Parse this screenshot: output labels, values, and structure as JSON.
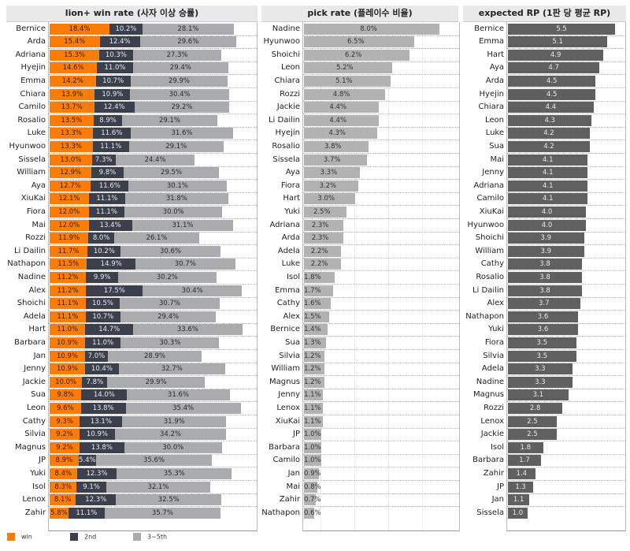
{
  "chart_data": [
    {
      "type": "bar",
      "orientation": "horizontal",
      "stacked": true,
      "title": "lion+ win rate (사자 이상 승률)",
      "categories": [
        "Bernice",
        "Arda",
        "Adriana",
        "Hyejin",
        "Emma",
        "Chiara",
        "Camilo",
        "Rosalio",
        "Luke",
        "Hyunwoo",
        "Sissela",
        "William",
        "Aya",
        "XiuKai",
        "Fiora",
        "Mai",
        "Rozzi",
        "Li Dailin",
        "Nathapon",
        "Nadine",
        "Alex",
        "Shoichi",
        "Adela",
        "Hart",
        "Barbara",
        "Jan",
        "Jenny",
        "Jackie",
        "Sua",
        "Leon",
        "Cathy",
        "Silvia",
        "Magnus",
        "JP",
        "Yuki",
        "Isol",
        "Lenox",
        "Zahir"
      ],
      "series": [
        {
          "name": "win",
          "color": "#fb7d07",
          "values": [
            18.4,
            15.4,
            15.3,
            14.6,
            14.2,
            13.9,
            13.7,
            13.5,
            13.3,
            13.3,
            13.0,
            12.9,
            12.7,
            12.1,
            12.0,
            12.0,
            11.9,
            11.7,
            11.5,
            11.2,
            11.2,
            11.1,
            11.1,
            11.0,
            10.9,
            10.9,
            10.9,
            10.0,
            9.8,
            9.6,
            9.3,
            9.2,
            9.2,
            8.9,
            8.4,
            8.3,
            8.1,
            5.8
          ]
        },
        {
          "name": "2nd",
          "color": "#3c3f4c",
          "values": [
            10.2,
            12.4,
            10.3,
            11.0,
            10.7,
            10.9,
            12.4,
            8.9,
            11.6,
            11.1,
            7.3,
            9.8,
            11.6,
            11.1,
            11.1,
            13.4,
            8.0,
            10.2,
            14.9,
            9.9,
            17.5,
            10.5,
            10.7,
            14.7,
            11.0,
            7.0,
            10.4,
            7.8,
            14.0,
            13.8,
            13.1,
            10.9,
            13.8,
            5.4,
            12.3,
            9.1,
            12.3,
            11.1
          ]
        },
        {
          "name": "3~5th",
          "color": "#a9abae",
          "values": [
            28.1,
            29.6,
            27.3,
            29.4,
            29.9,
            30.4,
            29.2,
            29.1,
            31.6,
            29.1,
            24.4,
            29.5,
            30.1,
            31.8,
            30.0,
            31.1,
            26.1,
            30.6,
            30.7,
            30.2,
            30.4,
            30.7,
            29.4,
            33.6,
            30.3,
            28.9,
            32.7,
            29.9,
            31.6,
            35.4,
            31.9,
            34.2,
            30.0,
            35.6,
            35.3,
            32.1,
            32.5,
            35.7
          ]
        }
      ],
      "value_format": "percent",
      "xlim": [
        0,
        63
      ],
      "grid": false,
      "legend": "bottom-left"
    },
    {
      "type": "bar",
      "orientation": "horizontal",
      "title": "pick rate (플레이수 비율)",
      "categories": [
        "Nadine",
        "Hyunwoo",
        "Shoichi",
        "Leon",
        "Chiara",
        "Rozzi",
        "Jackie",
        "Li Dailin",
        "Hyejin",
        "Rosalio",
        "Sissela",
        "Aya",
        "Fiora",
        "Hart",
        "Yuki",
        "Adriana",
        "Arda",
        "Adela",
        "Luke",
        "Isol",
        "Emma",
        "Cathy",
        "Alex",
        "Bernice",
        "Sua",
        "Silvia",
        "William",
        "Magnus",
        "Jenny",
        "Lenox",
        "XiuKai",
        "JP",
        "Barbara",
        "Camilo",
        "Jan",
        "Mai",
        "Zahir",
        "Nathapon"
      ],
      "values": [
        8.0,
        6.5,
        6.2,
        5.2,
        5.1,
        4.8,
        4.4,
        4.4,
        4.3,
        3.8,
        3.7,
        3.3,
        3.2,
        3.0,
        2.5,
        2.3,
        2.3,
        2.2,
        2.2,
        1.8,
        1.7,
        1.6,
        1.5,
        1.4,
        1.3,
        1.2,
        1.2,
        1.2,
        1.1,
        1.1,
        1.1,
        1.0,
        1.0,
        1.0,
        0.9,
        0.8,
        0.7,
        0.6
      ],
      "color": "#b2b2b2",
      "value_format": "percent",
      "xlim": [
        0,
        9
      ],
      "grid": true
    },
    {
      "type": "bar",
      "orientation": "horizontal",
      "title": "expected RP (1판 당 평균 RP)",
      "categories": [
        "Bernice",
        "Emma",
        "Hart",
        "Aya",
        "Arda",
        "Hyejin",
        "Chiara",
        "Leon",
        "Luke",
        "Sua",
        "Mai",
        "Jenny",
        "Adriana",
        "Camilo",
        "XiuKai",
        "Hyunwoo",
        "Shoichi",
        "William",
        "Cathy",
        "Rosalio",
        "Li Dailin",
        "Alex",
        "Nathapon",
        "Yuki",
        "Fiora",
        "Silvia",
        "Adela",
        "Nadine",
        "Magnus",
        "Rozzi",
        "Lenox",
        "Jackie",
        "Isol",
        "Barbara",
        "Zahir",
        "JP",
        "Jan",
        "Sissela"
      ],
      "values": [
        5.5,
        5.1,
        4.9,
        4.7,
        4.5,
        4.5,
        4.4,
        4.3,
        4.2,
        4.2,
        4.1,
        4.1,
        4.1,
        4.1,
        4.0,
        4.0,
        3.9,
        3.9,
        3.8,
        3.8,
        3.8,
        3.7,
        3.6,
        3.6,
        3.5,
        3.5,
        3.3,
        3.3,
        3.1,
        2.8,
        2.5,
        2.5,
        1.8,
        1.7,
        1.4,
        1.3,
        1.1,
        1.0
      ],
      "color": "#606060",
      "value_format": "decimal",
      "xlim": [
        0,
        5.9
      ],
      "grid": false
    }
  ],
  "legend": [
    {
      "name": "win",
      "color": "#fb7d07"
    },
    {
      "name": "2nd",
      "color": "#3c3f4c"
    },
    {
      "name": "3~5th",
      "color": "#a9abae"
    }
  ]
}
